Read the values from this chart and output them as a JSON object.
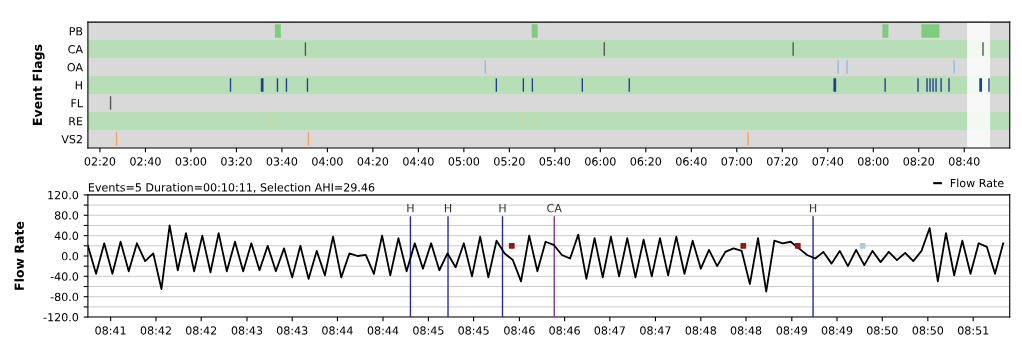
{
  "chart_data": [
    {
      "type": "bar",
      "orientation": "horizontal",
      "ylabel": "Event Flags",
      "categories": [
        "PB",
        "CA",
        "OA",
        "H",
        "FL",
        "RE",
        "VS2"
      ],
      "series": [
        {
          "colors": [
            "#7fcc7f",
            "#555555",
            "#88bbee",
            "#1f3f8f",
            "#555555",
            "#e8d080",
            "#f0a060"
          ],
          "base": [
            3.615,
            3.834,
            5.152,
            3.285,
            2.406,
            3.585,
            2.45
          ],
          "values": [
            0.044,
            0.01,
            0.01,
            0.01,
            0.01,
            0.01,
            0.01
          ]
        },
        {
          "colors": [
            "#7fcc7f",
            "#555555",
            "#88bbee",
            "#1f3f8f",
            null,
            "#e8d080",
            "#f0a060"
          ],
          "base": [
            5.497,
            6.024,
            7.737,
            3.512,
            null,
            5.431,
            3.856
          ],
          "values": [
            0.044,
            0.01,
            0.01,
            0.02,
            null,
            0.01,
            0.01
          ]
        },
        {
          "colors": [
            "#7fcc7f",
            "#555555",
            "#88bbee",
            "#1f3f8f",
            null,
            "#e8d080",
            "#f0a060"
          ],
          "base": [
            8.067,
            7.408,
            7.803,
            3.629,
            null,
            5.533,
            7.078
          ],
          "values": [
            0.044,
            0.01,
            0.01,
            0.01,
            null,
            0.01,
            0.01
          ]
        },
        {
          "colors": [
            "#7fcc7f",
            "#555555",
            "#88bbee",
            "#1f3f8f",
            null,
            null,
            null
          ],
          "base": [
            8.353,
            8.799,
            8.587,
            3.695,
            null,
            null,
            null
          ],
          "values": [
            0.132,
            0.01,
            0.01,
            0.01,
            null,
            null,
            null
          ]
        },
        {
          "color": "#1f3f8f",
          "base": [
            null,
            null,
            null,
            3.849,
            null,
            null,
            null
          ],
          "values": [
            null,
            null,
            null,
            0.01,
            null,
            null,
            null
          ]
        },
        {
          "color": "#1f3f8f",
          "base": [
            null,
            null,
            null,
            5.233,
            null,
            null,
            null
          ],
          "values": [
            null,
            null,
            null,
            0.01,
            null,
            null,
            null
          ]
        },
        {
          "color": "#1f3f8f",
          "base": [
            null,
            null,
            null,
            5.431,
            null,
            null,
            null
          ],
          "values": [
            null,
            null,
            null,
            0.01,
            null,
            null,
            null
          ]
        },
        {
          "color": "#1f3f8f",
          "base": [
            null,
            null,
            null,
            5.497,
            null,
            null,
            null
          ],
          "values": [
            null,
            null,
            null,
            0.01,
            null,
            null,
            null
          ]
        },
        {
          "color": "#1f3f8f",
          "base": [
            null,
            null,
            null,
            5.863,
            null,
            null,
            null
          ],
          "values": [
            null,
            null,
            null,
            0.01,
            null,
            null,
            null
          ]
        },
        {
          "color": "#1f3f8f",
          "base": [
            null,
            null,
            null,
            6.207,
            null,
            null,
            null
          ],
          "values": [
            null,
            null,
            null,
            0.01,
            null,
            null,
            null
          ]
        },
        {
          "color": "#1f3f8f",
          "base": [
            null,
            null,
            null,
            7.708,
            null,
            null,
            null
          ],
          "values": [
            null,
            null,
            null,
            0.02,
            null,
            null,
            null
          ]
        },
        {
          "color": "#1f3f8f",
          "base": [
            null,
            null,
            null,
            8.082,
            null,
            null,
            null
          ],
          "values": [
            null,
            null,
            null,
            0.01,
            null,
            null,
            null
          ]
        },
        {
          "color": "#1f3f8f",
          "base": [
            null,
            null,
            null,
            8.323,
            null,
            null,
            null
          ],
          "values": [
            null,
            null,
            null,
            0.01,
            null,
            null,
            null
          ]
        },
        {
          "color": "#1f3f8f",
          "base": [
            null,
            null,
            null,
            8.389,
            null,
            null,
            null
          ],
          "values": [
            null,
            null,
            null,
            0.01,
            null,
            null,
            null
          ]
        },
        {
          "color": "#1f3f8f",
          "base": [
            null,
            null,
            null,
            8.411,
            null,
            null,
            null
          ],
          "values": [
            null,
            null,
            null,
            0.01,
            null,
            null,
            null
          ]
        },
        {
          "color": "#1f3f8f",
          "base": [
            null,
            null,
            null,
            8.433,
            null,
            null,
            null
          ],
          "values": [
            null,
            null,
            null,
            0.01,
            null,
            null,
            null
          ]
        },
        {
          "color": "#1f3f8f",
          "base": [
            null,
            null,
            null,
            8.455,
            null,
            null,
            null
          ],
          "values": [
            null,
            null,
            null,
            0.01,
            null,
            null,
            null
          ]
        },
        {
          "color": "#1f3f8f",
          "base": [
            null,
            null,
            null,
            8.492,
            null,
            null,
            null
          ],
          "values": [
            null,
            null,
            null,
            0.01,
            null,
            null,
            null
          ]
        },
        {
          "color": "#1f3f8f",
          "base": [
            null,
            null,
            null,
            8.55,
            null,
            null,
            null
          ],
          "values": [
            null,
            null,
            null,
            0.01,
            null,
            null,
            null
          ]
        },
        {
          "color": "#1f3f8f",
          "base": [
            null,
            null,
            null,
            8.777,
            null,
            null,
            null
          ],
          "values": [
            null,
            null,
            null,
            0.02,
            null,
            null,
            null
          ]
        },
        {
          "color": "#1f3f8f",
          "base": [
            null,
            null,
            null,
            8.843,
            null,
            null,
            null
          ],
          "values": [
            null,
            null,
            null,
            0.01,
            null,
            null,
            null
          ]
        }
      ],
      "xlim": [
        2.245,
        9.0
      ],
      "xticks": [
        {
          "value": 2.3333,
          "label": "02:20"
        },
        {
          "value": 2.6667,
          "label": "02:40"
        },
        {
          "value": 3.0,
          "label": "03:00"
        },
        {
          "value": 3.3333,
          "label": "03:20"
        },
        {
          "value": 3.6667,
          "label": "03:40"
        },
        {
          "value": 4.0,
          "label": "04:00"
        },
        {
          "value": 4.3333,
          "label": "04:20"
        },
        {
          "value": 4.6667,
          "label": "04:40"
        },
        {
          "value": 5.0,
          "label": "05:00"
        },
        {
          "value": 5.3333,
          "label": "05:20"
        },
        {
          "value": 5.6667,
          "label": "05:40"
        },
        {
          "value": 6.0,
          "label": "06:00"
        },
        {
          "value": 6.3333,
          "label": "06:20"
        },
        {
          "value": 6.6667,
          "label": "06:40"
        },
        {
          "value": 7.0,
          "label": "07:00"
        },
        {
          "value": 7.3333,
          "label": "07:20"
        },
        {
          "value": 7.6667,
          "label": "07:40"
        },
        {
          "value": 8.0,
          "label": "08:00"
        },
        {
          "value": 8.3333,
          "label": "08:20"
        },
        {
          "value": 8.6667,
          "label": "08:40"
        }
      ],
      "bands": [
        {
          "axis": "x",
          "from": 8.6875,
          "to": 8.8567,
          "color": "#ffffff"
        }
      ]
    },
    {
      "type": "line",
      "ylabel": "Flow Rate",
      "subtitle": "Events=5 Duration=00:10:11, Selection AHI=29.46",
      "legend": "top right",
      "grid": "y",
      "series": [
        {
          "name": "Flow Rate",
          "color": "#000000",
          "x": [
            8.6875,
            8.689,
            8.6905,
            8.692,
            8.6935,
            8.695,
            8.6965,
            8.698,
            8.6995,
            8.701,
            8.7025,
            8.704,
            8.7055,
            8.707,
            8.7085,
            8.71,
            8.7115,
            8.713,
            8.7145,
            8.716,
            8.7175,
            8.719,
            8.7205,
            8.722,
            8.7235,
            8.725,
            8.7265,
            8.728,
            8.7295,
            8.731,
            8.7325,
            8.734,
            8.7355,
            8.737,
            8.7385,
            8.74,
            8.7415,
            8.743,
            8.7445,
            8.746,
            8.7475,
            8.749,
            8.7505,
            8.752,
            8.7535,
            8.755,
            8.7565,
            8.758,
            8.7595,
            8.761,
            8.7625,
            8.764,
            8.7655,
            8.767,
            8.7685,
            8.77,
            8.7715,
            8.773,
            8.7745,
            8.776,
            8.7775,
            8.779,
            8.7805,
            8.782,
            8.7835,
            8.785,
            8.7865,
            8.788,
            8.7895,
            8.791,
            8.7925,
            8.794,
            8.7955,
            8.797,
            8.7985,
            8.8,
            8.8015,
            8.803,
            8.8045,
            8.806,
            8.8075,
            8.809,
            8.8105,
            8.812,
            8.8135,
            8.815,
            8.8165,
            8.818,
            8.8195,
            8.821,
            8.8225,
            8.824,
            8.8255,
            8.827,
            8.8285,
            8.83,
            8.8315,
            8.833,
            8.8345,
            8.836,
            8.8375,
            8.839,
            8.8405,
            8.842,
            8.8435,
            8.845,
            8.8465,
            8.848,
            8.8495,
            8.851,
            8.8525,
            8.854,
            8.8555
          ],
          "values": [
            20,
            -35,
            25,
            -35,
            28,
            -30,
            25,
            -10,
            5,
            -65,
            60,
            -28,
            45,
            -30,
            40,
            -32,
            45,
            -30,
            28,
            -30,
            25,
            -28,
            20,
            -30,
            15,
            -42,
            20,
            -45,
            10,
            -38,
            38,
            -42,
            5,
            0,
            2,
            -35,
            40,
            -38,
            35,
            -30,
            25,
            -25,
            25,
            -28,
            5,
            -22,
            25,
            -40,
            38,
            -42,
            30,
            5,
            -8,
            -50,
            40,
            -30,
            28,
            22,
            2,
            -5,
            42,
            -45,
            35,
            -42,
            38,
            -40,
            35,
            -42,
            32,
            -40,
            35,
            -38,
            38,
            -35,
            30,
            -25,
            12,
            -20,
            8,
            15,
            10,
            -55,
            35,
            -70,
            30,
            25,
            28,
            15,
            2,
            -5,
            8,
            -15,
            10,
            -20,
            12,
            -18,
            10,
            -12,
            8,
            -8,
            6,
            -10,
            10,
            55,
            -50,
            45,
            -38,
            30,
            -35,
            25,
            18,
            -35,
            25
          ]
        },
        {
          "type": "scatter",
          "marker": "square",
          "color": "#8b1a1a",
          "x": [
            8.7653,
            8.8078,
            8.8178
          ],
          "values": [
            20,
            20,
            20
          ]
        },
        {
          "type": "scatter",
          "marker": "square",
          "color": "#aaccdd",
          "x": [
            8.8297
          ],
          "values": [
            20
          ]
        }
      ],
      "ref_lines": [
        {
          "axis": "x",
          "value": 8.7467,
          "label": "H",
          "color": "#2a2a8a"
        },
        {
          "axis": "x",
          "value": 8.7536,
          "label": "H",
          "color": "#2a2a8a"
        },
        {
          "axis": "x",
          "value": 8.7636,
          "label": "H",
          "color": "#2a2a8a"
        },
        {
          "axis": "x",
          "value": 8.7731,
          "label": "CA",
          "color": "#7a3a8a"
        },
        {
          "axis": "x",
          "value": 8.8206,
          "label": "H",
          "color": "#2a2a8a"
        }
      ],
      "xlim": [
        8.6875,
        8.8567
      ],
      "xticks": [
        {
          "value": 8.691666,
          "label": "08:41"
        },
        {
          "value": 8.7,
          "label": "08:42"
        },
        {
          "value": 8.7083,
          "label": "08:42"
        },
        {
          "value": 8.7167,
          "label": "08:43"
        },
        {
          "value": 8.725,
          "label": "08:43"
        },
        {
          "value": 8.7333,
          "label": "08:44"
        },
        {
          "value": 8.741666,
          "label": "08:44"
        },
        {
          "value": 8.75,
          "label": "08:45"
        },
        {
          "value": 8.7583,
          "label": "08:45"
        },
        {
          "value": 8.7667,
          "label": "08:46"
        },
        {
          "value": 8.775,
          "label": "08:46"
        },
        {
          "value": 8.7833,
          "label": "08:47"
        },
        {
          "value": 8.791666,
          "label": "08:47"
        },
        {
          "value": 8.8,
          "label": "08:48"
        },
        {
          "value": 8.8083,
          "label": "08:48"
        },
        {
          "value": 8.8167,
          "label": "08:49"
        },
        {
          "value": 8.825,
          "label": "08:49"
        },
        {
          "value": 8.8333,
          "label": "08:50"
        },
        {
          "value": 8.841666,
          "label": "08:50"
        },
        {
          "value": 8.85,
          "label": "08:51"
        }
      ],
      "ylim": [
        -120,
        120
      ],
      "yticks": [
        {
          "value": -120,
          "label": "-120.0"
        },
        {
          "value": -100,
          "label": null
        },
        {
          "value": -80,
          "label": "-80.0"
        },
        {
          "value": -60,
          "label": null
        },
        {
          "value": -40,
          "label": "-40.0"
        },
        {
          "value": -20,
          "label": null
        },
        {
          "value": 0,
          "label": "0.0"
        },
        {
          "value": 20,
          "label": null
        },
        {
          "value": 40,
          "label": "40.0"
        },
        {
          "value": 60,
          "label": null
        },
        {
          "value": 80,
          "label": "80.0"
        },
        {
          "value": 100,
          "label": null
        },
        {
          "value": 120,
          "label": "120.0"
        }
      ]
    }
  ]
}
